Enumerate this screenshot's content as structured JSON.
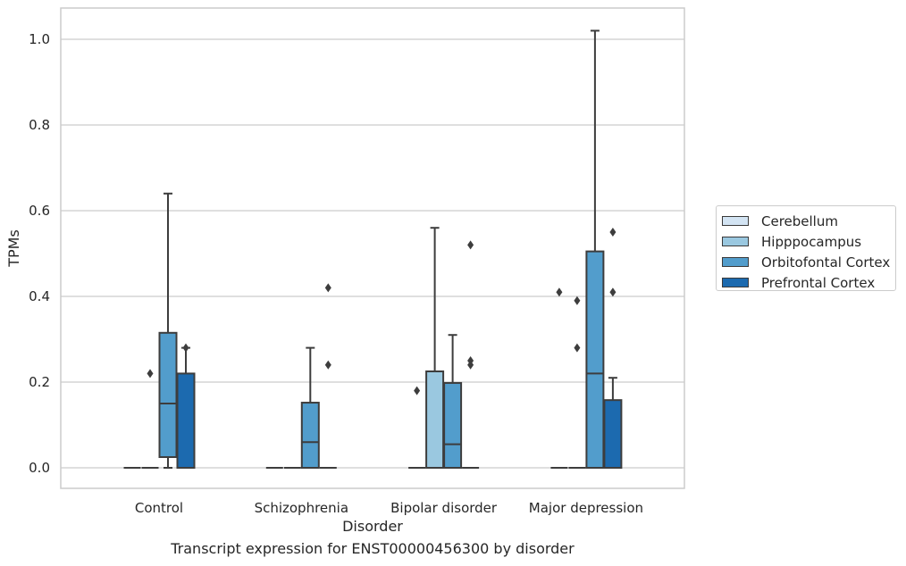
{
  "caption": "Transcript expression for ENST00000456300 by disorder",
  "chart_data": {
    "type": "box",
    "xlabel": "Disorder",
    "ylabel": "TPMs",
    "ylim": [
      -0.05,
      1.07
    ],
    "yticks": [
      0.0,
      0.2,
      0.4,
      0.6,
      0.8,
      1.0
    ],
    "ytick_labels": [
      "0.0",
      "0.2",
      "0.4",
      "0.6",
      "0.8",
      "1.0"
    ],
    "grid": true,
    "legend_position": "right",
    "categories": [
      "Control",
      "Schizophrenia",
      "Bipolar disorder",
      "Major depression"
    ],
    "series": [
      {
        "name": "Cerebellum",
        "color": "#d3e4f3",
        "boxes": [
          {
            "q1": 0,
            "median": 0,
            "q3": 0,
            "whislo": 0,
            "whishi": 0,
            "fliers": []
          },
          {
            "q1": 0,
            "median": 0,
            "q3": 0,
            "whislo": 0,
            "whishi": 0,
            "fliers": []
          },
          {
            "q1": 0,
            "median": 0,
            "q3": 0,
            "whislo": 0,
            "whishi": 0,
            "fliers": [
              0.18
            ]
          },
          {
            "q1": 0,
            "median": 0,
            "q3": 0,
            "whislo": 0,
            "whishi": 0,
            "fliers": [
              0.41
            ]
          }
        ]
      },
      {
        "name": "Hipppocampus",
        "color": "#9ac8e0",
        "boxes": [
          {
            "q1": 0,
            "median": 0,
            "q3": 0,
            "whislo": 0,
            "whishi": 0,
            "fliers": [
              0.22
            ]
          },
          {
            "q1": 0,
            "median": 0,
            "q3": 0,
            "whislo": 0,
            "whishi": 0,
            "fliers": []
          },
          {
            "q1": 0,
            "median": 0,
            "q3": 0.225,
            "whislo": 0,
            "whishi": 0.56,
            "fliers": []
          },
          {
            "q1": 0,
            "median": 0,
            "q3": 0,
            "whislo": 0,
            "whishi": 0,
            "fliers": [
              0.39,
              0.28
            ]
          }
        ]
      },
      {
        "name": "Orbitofontal Cortex",
        "color": "#529dcc",
        "boxes": [
          {
            "q1": 0.025,
            "median": 0.15,
            "q3": 0.315,
            "whislo": 0,
            "whishi": 0.64,
            "fliers": []
          },
          {
            "q1": 0,
            "median": 0.06,
            "q3": 0.152,
            "whislo": 0,
            "whishi": 0.28,
            "fliers": []
          },
          {
            "q1": 0,
            "median": 0.055,
            "q3": 0.198,
            "whislo": 0,
            "whishi": 0.31,
            "fliers": []
          },
          {
            "q1": 0,
            "median": 0.22,
            "q3": 0.505,
            "whislo": 0,
            "whishi": 1.02,
            "fliers": []
          }
        ]
      },
      {
        "name": "Prefrontal Cortex",
        "color": "#1c6aaf",
        "boxes": [
          {
            "q1": 0,
            "median": 0,
            "q3": 0.22,
            "whislo": 0,
            "whishi": 0.28,
            "fliers": [
              0.28
            ]
          },
          {
            "q1": 0,
            "median": 0,
            "q3": 0,
            "whislo": 0,
            "whishi": 0,
            "fliers": [
              0.42,
              0.24
            ]
          },
          {
            "q1": 0,
            "median": 0,
            "q3": 0,
            "whislo": 0,
            "whishi": 0,
            "fliers": [
              0.52,
              0.25,
              0.24
            ]
          },
          {
            "q1": 0,
            "median": 0,
            "q3": 0.158,
            "whislo": 0,
            "whishi": 0.21,
            "fliers": [
              0.55,
              0.41
            ]
          }
        ]
      }
    ]
  }
}
